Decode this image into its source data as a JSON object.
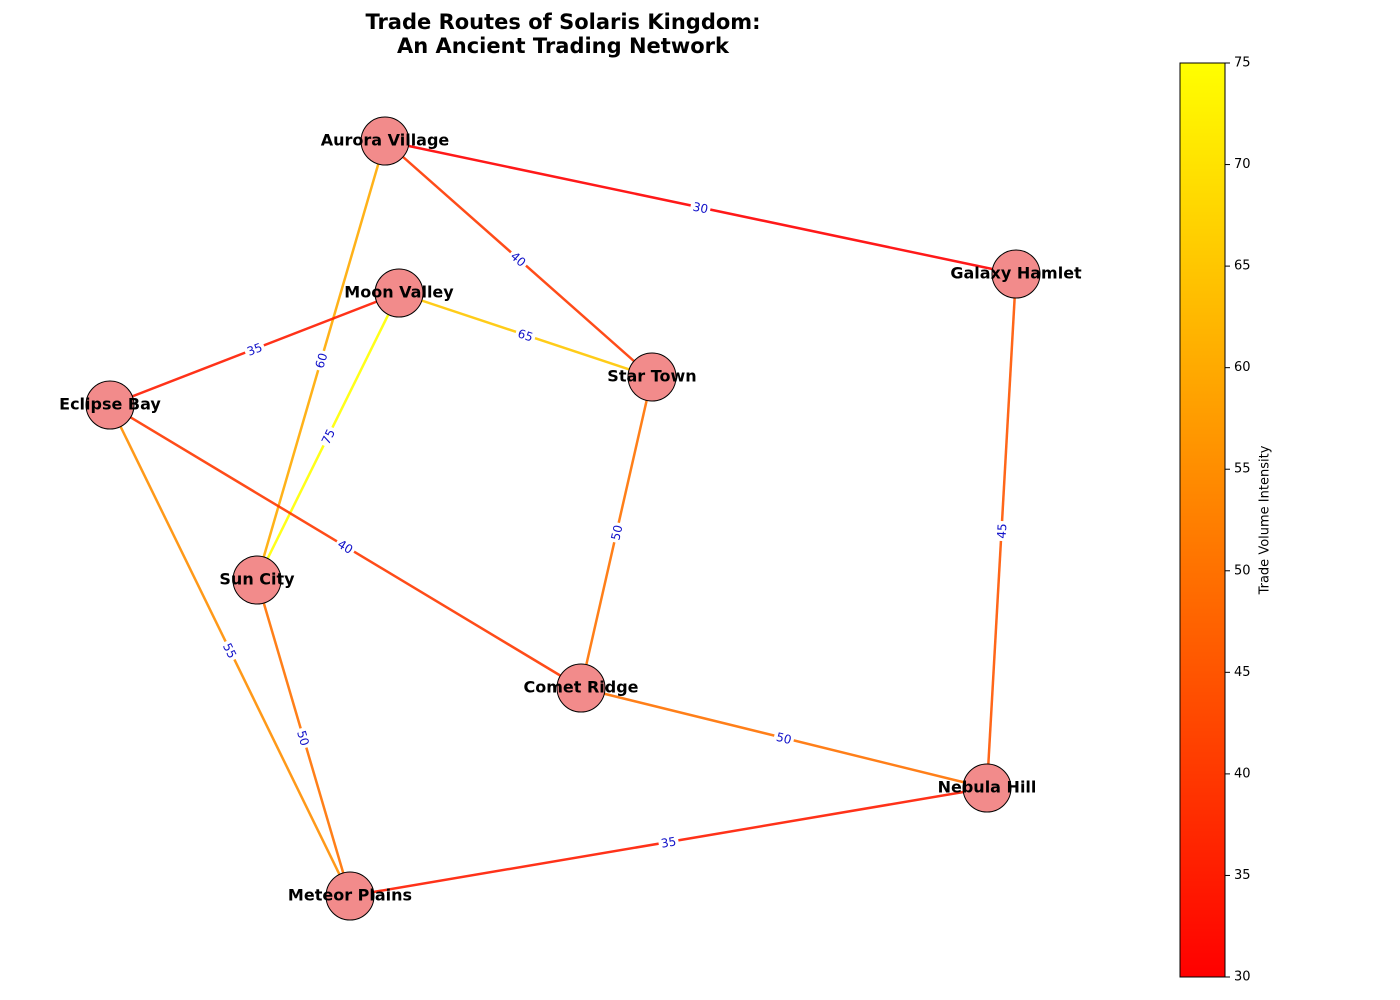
{
  "title": "Trade Routes of Solaris Kingdom:\nAn Ancient Trading Network",
  "nodes": [
    {
      "label": "Aurora Village"
    },
    {
      "label": "Galaxy Hamlet"
    },
    {
      "label": "Moon Valley"
    },
    {
      "label": "Star Town"
    },
    {
      "label": "Eclipse Bay"
    },
    {
      "label": "Sun City"
    },
    {
      "label": "Comet Ridge"
    },
    {
      "label": "Nebula Hill"
    },
    {
      "label": "Meteor Plains"
    }
  ],
  "edges": [
    {
      "source": "Aurora Village",
      "target": "Galaxy Hamlet",
      "value": 30
    },
    {
      "source": "Aurora Village",
      "target": "Star Town",
      "value": 40
    },
    {
      "source": "Aurora Village",
      "target": "Sun City",
      "value": 60
    },
    {
      "source": "Moon Valley",
      "target": "Star Town",
      "value": 65
    },
    {
      "source": "Moon Valley",
      "target": "Eclipse Bay",
      "value": 35
    },
    {
      "source": "Moon Valley",
      "target": "Sun City",
      "value": 75
    },
    {
      "source": "Eclipse Bay",
      "target": "Comet Ridge",
      "value": 40
    },
    {
      "source": "Eclipse Bay",
      "target": "Meteor Plains",
      "value": 55
    },
    {
      "source": "Star Town",
      "target": "Comet Ridge",
      "value": 50
    },
    {
      "source": "Sun City",
      "target": "Meteor Plains",
      "value": 50
    },
    {
      "source": "Galaxy Hamlet",
      "target": "Nebula Hill",
      "value": 45
    },
    {
      "source": "Comet Ridge",
      "target": "Nebula Hill",
      "value": 50
    },
    {
      "source": "Meteor Plains",
      "target": "Nebula Hill",
      "value": 35
    }
  ],
  "colorbar": {
    "label": "Trade Volume Intensity",
    "lim": [
      30,
      75
    ],
    "ticks": [
      30,
      35,
      40,
      45,
      50,
      55,
      60,
      65,
      70,
      75
    ],
    "colormap": "autumn"
  }
}
